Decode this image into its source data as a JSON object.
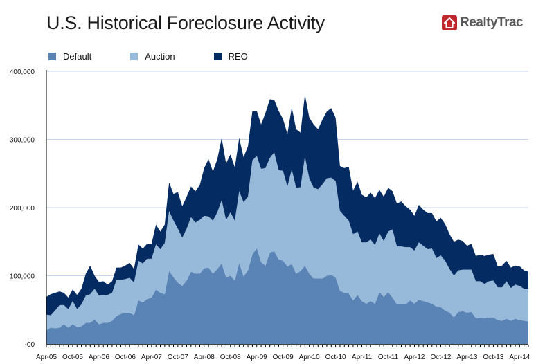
{
  "chart_data": {
    "type": "area",
    "stacked": true,
    "title": "U.S. Historical Foreclosure Activity",
    "brand": "RealtyTrac",
    "xlabel": "",
    "ylabel": "",
    "ylim": [
      0,
      400000
    ],
    "y_ticks": [
      0,
      100000,
      200000,
      300000,
      400000
    ],
    "y_tick_labels": [
      "-00",
      "100,000",
      "200,000",
      "300,000",
      "400,000"
    ],
    "x_start": "Apr-05",
    "x_end": "Jun-14",
    "x_step": "month",
    "x_tick_labels": [
      "Apr-05",
      "Oct-05",
      "Apr-06",
      "Oct-06",
      "Apr-07",
      "Oct-07",
      "Apr-08",
      "Oct-08",
      "Apr-09",
      "Oct-09",
      "Apr-10",
      "Oct-10",
      "Apr-11",
      "Oct-11",
      "Apr-12",
      "Oct-12",
      "Apr-13",
      "Oct-13",
      "Apr-14"
    ],
    "x_tick_every_months": 6,
    "grid": "horizontal",
    "legend_position": "top-left",
    "value_scale": 1000,
    "series": [
      {
        "name": "Default",
        "color": "#5b84b6",
        "values": [
          20,
          24,
          23,
          24,
          29,
          24,
          29,
          25,
          26,
          31,
          31,
          36,
          29,
          31,
          31,
          34,
          41,
          44,
          46,
          46,
          42,
          64,
          61,
          66,
          68,
          80,
          75,
          73,
          107,
          98,
          90,
          85,
          93,
          106,
          103,
          103,
          111,
          112,
          103,
          110,
          118,
          98,
          100,
          93,
          119,
          99,
          108,
          131,
          141,
          120,
          115,
          134,
          136,
          124,
          122,
          114,
          117,
          103,
          107,
          115,
          103,
          96,
          96,
          96,
          100,
          101,
          98,
          78,
          75,
          74,
          64,
          72,
          63,
          59,
          63,
          59,
          76,
          69,
          76,
          68,
          58,
          58,
          58,
          64,
          59,
          65,
          63,
          61,
          59,
          55,
          54,
          49,
          46,
          39,
          47,
          48,
          46,
          47,
          38,
          39,
          38,
          39,
          39,
          35,
          34,
          37,
          34,
          37,
          35,
          34,
          33
        ]
      },
      {
        "name": "Auction",
        "color": "#98bada",
        "values": [
          23,
          18,
          26,
          33,
          28,
          27,
          34,
          26,
          32,
          40,
          42,
          45,
          42,
          41,
          41,
          41,
          53,
          50,
          49,
          51,
          48,
          58,
          57,
          59,
          57,
          66,
          64,
          75,
          88,
          83,
          79,
          71,
          76,
          80,
          75,
          79,
          77,
          75,
          78,
          83,
          93,
          84,
          93,
          88,
          105,
          109,
          108,
          138,
          135,
          137,
          143,
          139,
          145,
          131,
          132,
          117,
          139,
          126,
          123,
          160,
          140,
          133,
          131,
          138,
          143,
          143,
          141,
          117,
          113,
          107,
          97,
          93,
          86,
          90,
          90,
          86,
          86,
          82,
          89,
          100,
          85,
          85,
          84,
          78,
          78,
          84,
          81,
          78,
          81,
          71,
          76,
          73,
          64,
          61,
          61,
          61,
          63,
          62,
          54,
          53,
          50,
          53,
          54,
          48,
          49,
          55,
          48,
          50,
          50,
          47,
          48
        ]
      },
      {
        "name": "REO",
        "color": "#052b63",
        "values": [
          26,
          31,
          26,
          20,
          18,
          17,
          17,
          21,
          23,
          32,
          42,
          19,
          20,
          20,
          15,
          17,
          18,
          18,
          20,
          22,
          20,
          24,
          22,
          22,
          22,
          29,
          26,
          27,
          42,
          39,
          54,
          46,
          47,
          45,
          46,
          51,
          70,
          84,
          72,
          78,
          91,
          83,
          85,
          78,
          78,
          66,
          74,
          72,
          66,
          65,
          81,
          86,
          77,
          87,
          76,
          77,
          91,
          86,
          80,
          91,
          89,
          93,
          88,
          95,
          98,
          102,
          93,
          66,
          70,
          79,
          64,
          73,
          70,
          66,
          69,
          69,
          64,
          65,
          64,
          56,
          63,
          66,
          60,
          55,
          51,
          55,
          53,
          53,
          52,
          54,
          55,
          54,
          51,
          50,
          45,
          42,
          35,
          38,
          37,
          39,
          41,
          39,
          39,
          31,
          32,
          30,
          30,
          28,
          29,
          27,
          25
        ]
      }
    ]
  }
}
